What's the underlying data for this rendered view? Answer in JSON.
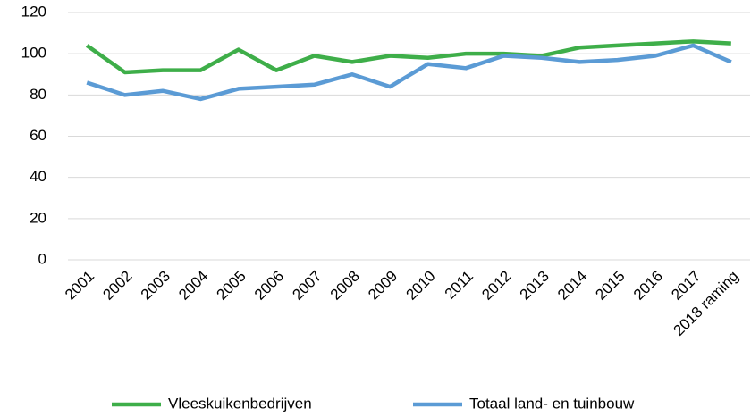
{
  "chart_data": {
    "type": "line",
    "categories": [
      "2001",
      "2002",
      "2003",
      "2004",
      "2005",
      "2006",
      "2007",
      "2008",
      "2009",
      "2010",
      "2011",
      "2012",
      "2013",
      "2014",
      "2015",
      "2016",
      "2017",
      "2018 raming"
    ],
    "series": [
      {
        "name": "Vleeskuikenbedrijven",
        "color": "#3eae49",
        "values": [
          104,
          91,
          92,
          92,
          102,
          92,
          99,
          96,
          99,
          98,
          100,
          100,
          99,
          103,
          104,
          105,
          106,
          105
        ]
      },
      {
        "name": "Totaal land- en tuinbouw",
        "color": "#5b9bd5",
        "values": [
          86,
          80,
          82,
          78,
          83,
          84,
          85,
          90,
          84,
          95,
          93,
          99,
          98,
          96,
          97,
          99,
          104,
          96
        ]
      }
    ],
    "ylim": [
      0,
      120
    ],
    "yticks": [
      0,
      20,
      40,
      60,
      80,
      100,
      120
    ],
    "grid": true,
    "legend": "bottom"
  }
}
